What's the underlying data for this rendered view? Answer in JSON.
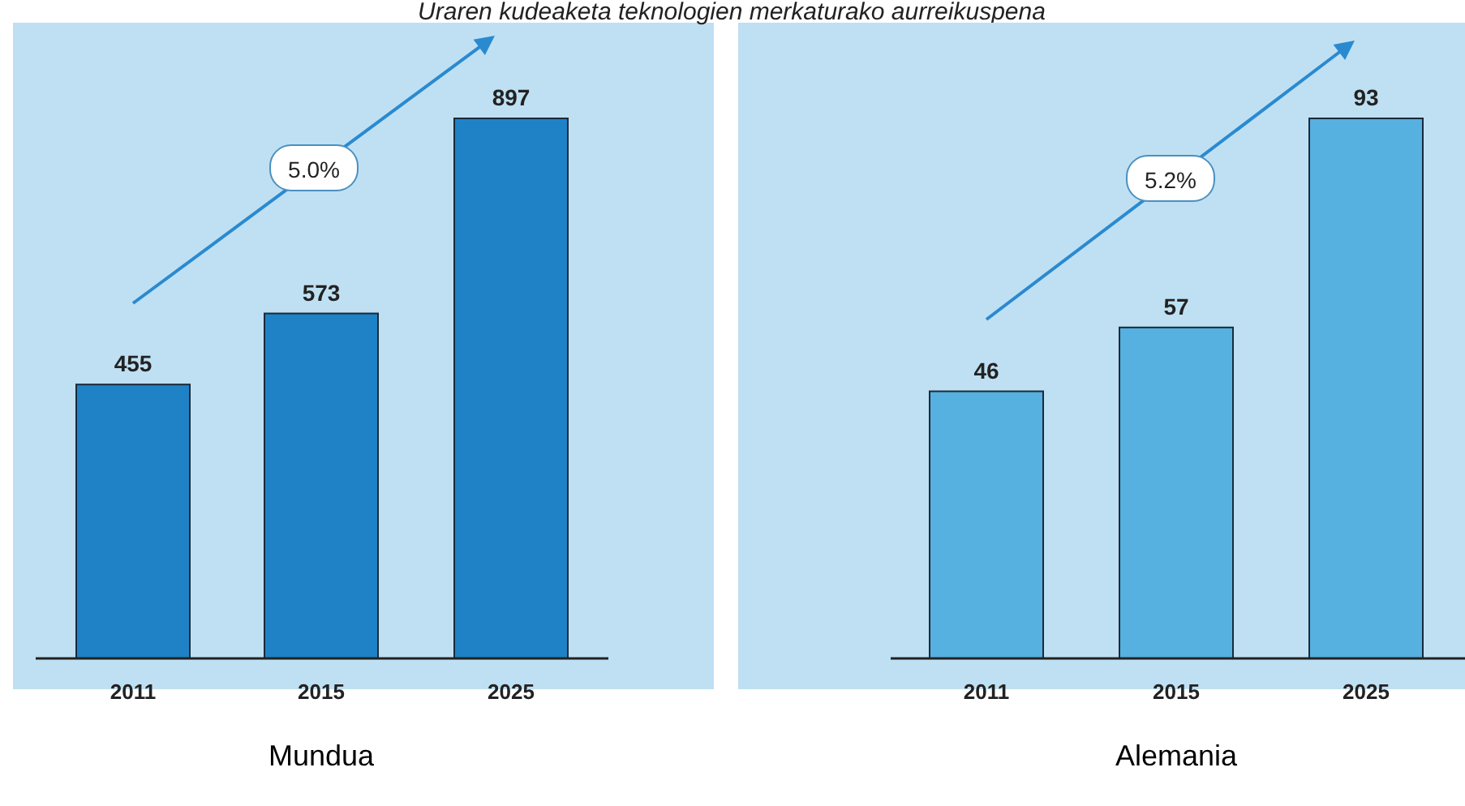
{
  "chart_data": [
    {
      "type": "bar",
      "title": "Uraren kudeaketa teknologien merkaturako aurreikuspena",
      "xlabel": "Mundua",
      "categories": [
        "2011",
        "2015",
        "2025"
      ],
      "values": [
        455,
        573,
        897
      ],
      "color": "#1f82c6",
      "data_labels": true,
      "annotations": [
        "5.0%"
      ]
    },
    {
      "type": "bar",
      "xlabel": "Alemania",
      "categories": [
        "2011",
        "2015",
        "2025"
      ],
      "values": [
        46,
        57,
        93
      ],
      "color": "#56b0e0",
      "data_labels": true,
      "annotations": [
        "5.2%"
      ]
    }
  ]
}
